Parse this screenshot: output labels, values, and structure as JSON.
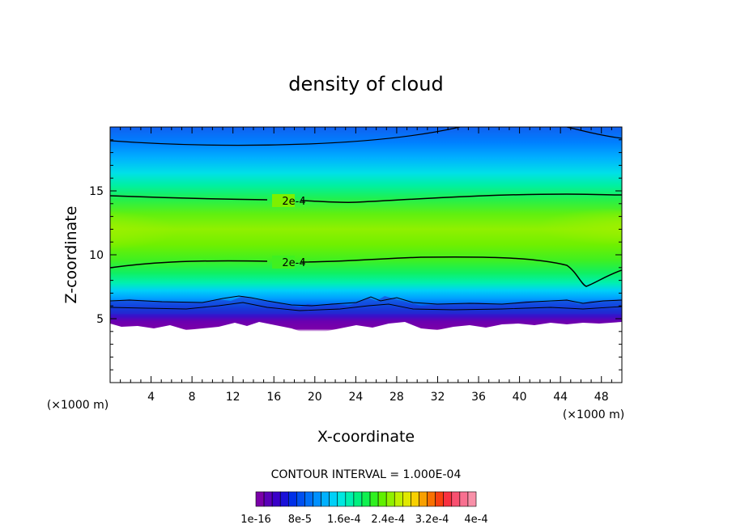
{
  "chart_data": {
    "type": "heatmap",
    "title": "density of cloud",
    "xlabel": "X-coordinate",
    "ylabel": "Z-coordinate",
    "x_unit_left": "(×1000 m)",
    "x_unit_right": "(×1000 m)",
    "xlim": [
      0,
      50
    ],
    "ylim": [
      0,
      20
    ],
    "x_ticks": [
      4,
      8,
      12,
      16,
      20,
      24,
      28,
      32,
      36,
      40,
      44,
      48
    ],
    "x_tick_labels": [
      "4",
      "8",
      "12",
      "16",
      "20",
      "24",
      "28",
      "32",
      "36",
      "40",
      "44",
      "48"
    ],
    "y_ticks": [
      5,
      10,
      15
    ],
    "y_tick_labels": [
      "5",
      "10",
      "15"
    ],
    "contour_labels": [
      {
        "text": "2e-4",
        "x": 18,
        "z": 14.2
      },
      {
        "text": "2e-4",
        "x": 18,
        "z": 9.6
      }
    ],
    "contour_interval_text": "CONTOUR INTERVAL = 1.000E-04",
    "colorbar": {
      "colors": [
        "#7a00a8",
        "#5a00b8",
        "#3a00c8",
        "#1a10d8",
        "#0030e8",
        "#0050f0",
        "#0070f8",
        "#0090ff",
        "#00b0ff",
        "#00d0f8",
        "#00e8e0",
        "#00f0b0",
        "#00f080",
        "#10f050",
        "#30f020",
        "#60f000",
        "#90f000",
        "#c0f000",
        "#e0e800",
        "#f8d000",
        "#f8a000",
        "#f87000",
        "#f84010",
        "#f83040",
        "#f85070",
        "#f87090",
        "#f890a8"
      ],
      "tick_labels": [
        "1e-16",
        "8e-5",
        "1.6e-4",
        "2.4e-4",
        "3.2e-4",
        "4e-4"
      ]
    }
  }
}
